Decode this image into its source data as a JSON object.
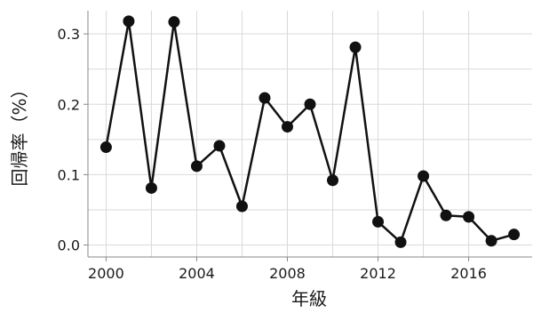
{
  "chart_data": {
    "type": "line",
    "title": "",
    "xlabel": "年級",
    "ylabel": "回帰率（%）",
    "xlim": [
      1999.2,
      2018.8
    ],
    "ylim": [
      -0.017,
      0.333
    ],
    "xticks": [
      2000,
      2004,
      2008,
      2012,
      2016
    ],
    "xtick_labels": [
      "2000",
      "2004",
      "2008",
      "2012",
      "2016"
    ],
    "yticks": [
      0.0,
      0.1,
      0.2,
      0.3
    ],
    "ytick_labels": [
      "0.0",
      "0.1",
      "0.2",
      "0.3"
    ],
    "grid": true,
    "legend": "none",
    "line_color": "#111111",
    "x": [
      2000,
      2001,
      2002,
      2003,
      2004,
      2005,
      2006,
      2007,
      2008,
      2009,
      2010,
      2011,
      2012,
      2013,
      2014,
      2015,
      2016,
      2017,
      2018
    ],
    "series": [
      {
        "values": [
          0.139,
          0.318,
          0.081,
          0.317,
          0.112,
          0.141,
          0.055,
          0.209,
          0.168,
          0.2,
          0.092,
          0.281,
          0.033,
          0.004,
          0.098,
          0.042,
          0.04,
          0.006,
          0.015
        ]
      }
    ]
  }
}
